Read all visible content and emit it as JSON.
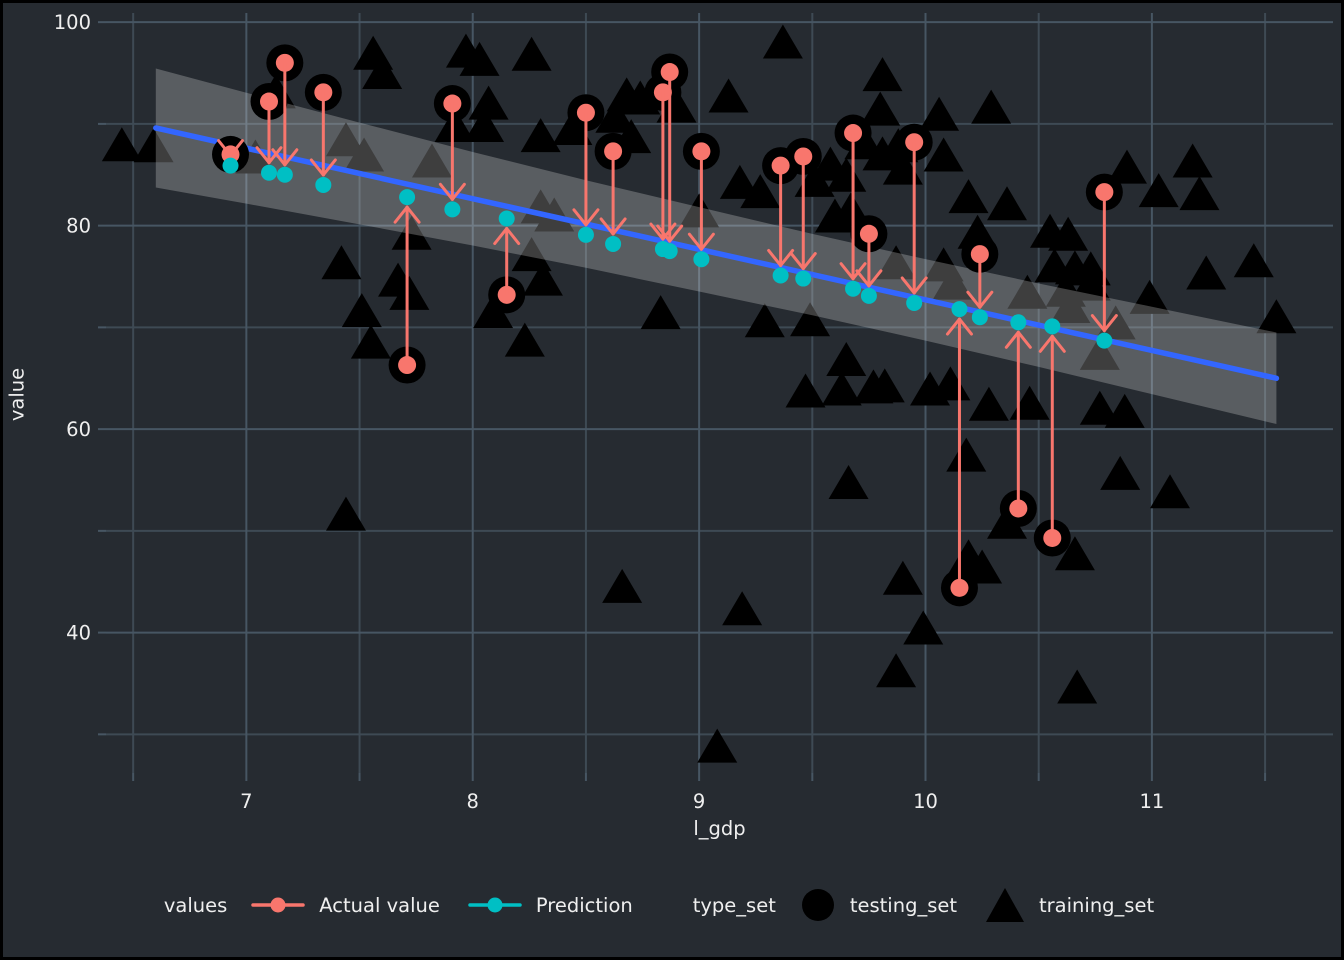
{
  "colors": {
    "background": "#262B31",
    "grid_major": "#475663",
    "grid_minor": "#3E4A54",
    "tick_mark": "#475663",
    "text": "#EFEFEF",
    "smooth_line": "#3366FF",
    "band": "rgba(230,230,230,0.27)",
    "marker_black": "#000000",
    "actual": "#F8766D",
    "prediction": "#00BFC4"
  },
  "chart_data": {
    "type": "scatter",
    "title": "",
    "xlabel": "l_gdp",
    "ylabel": "value",
    "xlim": [
      6.38,
      11.8
    ],
    "ylim": [
      26.2,
      100.9
    ],
    "x_major_ticks": [
      7,
      8,
      9,
      10,
      11
    ],
    "x_minor_ticks": [
      6.5,
      7.5,
      8.5,
      9.5,
      10.5,
      11.5
    ],
    "y_major_ticks": [
      40,
      60,
      80,
      100
    ],
    "y_minor_ticks": [
      30,
      50,
      70,
      90
    ],
    "grid": "on",
    "legend_position": "bottom",
    "regression_line": {
      "x_start": 6.6,
      "y_start": 89.6,
      "x_end": 11.55,
      "y_end": 65.0
    },
    "confidence_band": {
      "x": [
        6.6,
        7.0,
        7.5,
        8.0,
        8.5,
        9.0,
        9.5,
        10.0,
        10.5,
        11.0,
        11.55
      ],
      "half_width": [
        5.85,
        5.45,
        5.0,
        4.6,
        4.3,
        4.15,
        4.0,
        4.0,
        4.1,
        4.3,
        4.5
      ]
    },
    "legend": {
      "values_title": "values",
      "actual_label": "Actual value",
      "prediction_label": "Prediction",
      "type_title": "type_set",
      "testing_label": "testing_set",
      "training_label": "training_set"
    },
    "series": [
      {
        "name": "testing_set",
        "marker": "circle",
        "points": [
          {
            "x": 6.93,
            "actual": 87.0,
            "prediction": 85.9
          },
          {
            "x": 7.1,
            "actual": 92.2,
            "prediction": 85.2
          },
          {
            "x": 7.17,
            "actual": 96.0,
            "prediction": 85.0
          },
          {
            "x": 7.34,
            "actual": 93.1,
            "prediction": 84.0
          },
          {
            "x": 7.71,
            "actual": 66.3,
            "prediction": 82.8
          },
          {
            "x": 7.91,
            "actual": 92.0,
            "prediction": 81.6
          },
          {
            "x": 8.15,
            "actual": 73.2,
            "prediction": 80.7
          },
          {
            "x": 8.5,
            "actual": 91.1,
            "prediction": 79.1
          },
          {
            "x": 8.62,
            "actual": 87.3,
            "prediction": 78.2
          },
          {
            "x": 8.84,
            "actual": 93.1,
            "prediction": 77.7
          },
          {
            "x": 8.87,
            "actual": 95.1,
            "prediction": 77.5
          },
          {
            "x": 9.01,
            "actual": 87.3,
            "prediction": 76.7
          },
          {
            "x": 9.36,
            "actual": 85.9,
            "prediction": 75.1
          },
          {
            "x": 9.46,
            "actual": 86.8,
            "prediction": 74.8
          },
          {
            "x": 9.68,
            "actual": 89.1,
            "prediction": 73.8
          },
          {
            "x": 9.75,
            "actual": 79.2,
            "prediction": 73.1
          },
          {
            "x": 9.95,
            "actual": 88.2,
            "prediction": 72.4
          },
          {
            "x": 10.15,
            "actual": 44.4,
            "prediction": 71.8
          },
          {
            "x": 10.24,
            "actual": 77.2,
            "prediction": 71.0
          },
          {
            "x": 10.41,
            "actual": 52.2,
            "prediction": 70.5
          },
          {
            "x": 10.56,
            "actual": 49.3,
            "prediction": 70.1
          },
          {
            "x": 10.79,
            "actual": 83.3,
            "prediction": 68.7
          }
        ]
      },
      {
        "name": "training_set",
        "marker": "triangle",
        "points": [
          [
            6.45,
            87.8
          ],
          [
            6.59,
            87.7
          ],
          [
            7.04,
            86.6
          ],
          [
            7.13,
            93.0
          ],
          [
            7.42,
            76.2
          ],
          [
            7.44,
            88.3
          ],
          [
            7.52,
            86.8
          ],
          [
            7.51,
            71.5
          ],
          [
            7.55,
            68.4
          ],
          [
            7.56,
            96.8
          ],
          [
            7.6,
            94.9
          ],
          [
            7.44,
            51.5
          ],
          [
            7.67,
            74.5
          ],
          [
            7.72,
            73.2
          ],
          [
            7.73,
            79.1
          ],
          [
            7.82,
            86.2
          ],
          [
            7.92,
            89.7
          ],
          [
            8.05,
            89.7
          ],
          [
            8.07,
            91.9
          ],
          [
            7.97,
            97.0
          ],
          [
            8.03,
            96.2
          ],
          [
            8.09,
            71.4
          ],
          [
            8.23,
            68.6
          ],
          [
            8.26,
            96.7
          ],
          [
            8.26,
            77.0
          ],
          [
            8.31,
            74.6
          ],
          [
            8.3,
            81.7
          ],
          [
            8.36,
            80.9
          ],
          [
            8.44,
            89.4
          ],
          [
            8.3,
            88.7
          ],
          [
            8.63,
            90.6
          ],
          [
            8.68,
            92.7
          ],
          [
            8.74,
            92.4
          ],
          [
            8.7,
            88.6
          ],
          [
            8.66,
            44.4
          ],
          [
            8.83,
            71.3
          ],
          [
            8.9,
            91.6
          ],
          [
            9.0,
            81.3
          ],
          [
            9.13,
            92.6
          ],
          [
            9.18,
            84.1
          ],
          [
            9.27,
            83.2
          ],
          [
            9.08,
            28.7
          ],
          [
            9.19,
            42.2
          ],
          [
            9.29,
            70.5
          ],
          [
            9.49,
            70.6
          ],
          [
            9.37,
            97.9
          ],
          [
            9.51,
            84.3
          ],
          [
            9.58,
            85.9
          ],
          [
            9.65,
            84.8
          ],
          [
            9.6,
            80.8
          ],
          [
            9.67,
            81.4
          ],
          [
            9.65,
            66.7
          ],
          [
            9.47,
            63.6
          ],
          [
            9.63,
            63.8
          ],
          [
            9.77,
            64.0
          ],
          [
            9.82,
            64.1
          ],
          [
            9.66,
            54.6
          ],
          [
            9.81,
            94.7
          ],
          [
            9.8,
            91.3
          ],
          [
            9.73,
            88.0
          ],
          [
            9.87,
            76.2
          ],
          [
            9.9,
            45.2
          ],
          [
            9.87,
            36.1
          ],
          [
            9.99,
            40.3
          ],
          [
            9.81,
            86.9
          ],
          [
            9.88,
            87.7
          ],
          [
            9.9,
            85.5
          ],
          [
            10.02,
            63.8
          ],
          [
            10.08,
            76.0
          ],
          [
            10.11,
            64.3
          ],
          [
            10.06,
            90.8
          ],
          [
            10.12,
            74.2
          ],
          [
            10.29,
            91.5
          ],
          [
            10.08,
            86.8
          ],
          [
            10.19,
            82.7
          ],
          [
            10.36,
            82.0
          ],
          [
            10.23,
            79.2
          ],
          [
            10.18,
            57.3
          ],
          [
            10.19,
            47.3
          ],
          [
            10.25,
            46.3
          ],
          [
            10.36,
            50.7
          ],
          [
            10.45,
            73.3
          ],
          [
            10.46,
            62.4
          ],
          [
            10.28,
            62.3
          ],
          [
            10.55,
            79.3
          ],
          [
            10.63,
            79.0
          ],
          [
            10.57,
            75.9
          ],
          [
            10.66,
            75.7
          ],
          [
            10.73,
            75.6
          ],
          [
            10.62,
            73.5
          ],
          [
            10.64,
            71.9
          ],
          [
            10.73,
            74.1
          ],
          [
            10.66,
            47.6
          ],
          [
            10.67,
            34.5
          ],
          [
            10.77,
            61.9
          ],
          [
            10.88,
            61.6
          ],
          [
            10.84,
            70.3
          ],
          [
            10.77,
            67.3
          ],
          [
            10.86,
            55.5
          ],
          [
            10.89,
            85.6
          ],
          [
            11.03,
            83.3
          ],
          [
            10.99,
            72.8
          ],
          [
            11.08,
            53.7
          ],
          [
            11.18,
            86.2
          ],
          [
            11.21,
            83.0
          ],
          [
            11.24,
            75.2
          ],
          [
            11.45,
            76.4
          ],
          [
            11.55,
            70.9
          ]
        ]
      }
    ]
  }
}
